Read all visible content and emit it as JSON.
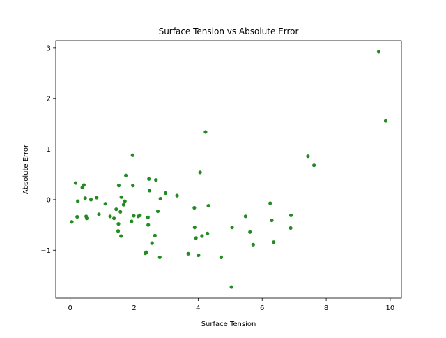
{
  "chart_data": {
    "type": "scatter",
    "title": "Surface Tension vs Absolute Error",
    "xlabel": "Surface Tension",
    "ylabel": "Absolute Error",
    "xlim": [
      -0.45,
      10.35
    ],
    "ylim": [
      -1.95,
      3.15
    ],
    "xticks": [
      0,
      2,
      4,
      6,
      8,
      10
    ],
    "yticks": [
      -1,
      0,
      1,
      2,
      3
    ],
    "grid": false,
    "legend": "none",
    "marker_color": "#228b22",
    "points": [
      {
        "x": 0.05,
        "y": -0.44
      },
      {
        "x": 0.17,
        "y": 0.33
      },
      {
        "x": 0.22,
        "y": -0.34
      },
      {
        "x": 0.24,
        "y": -0.03
      },
      {
        "x": 0.38,
        "y": 0.24
      },
      {
        "x": 0.43,
        "y": 0.29
      },
      {
        "x": 0.47,
        "y": 0.03
      },
      {
        "x": 0.5,
        "y": -0.33
      },
      {
        "x": 0.52,
        "y": -0.37
      },
      {
        "x": 0.65,
        "y": 0.0
      },
      {
        "x": 0.83,
        "y": 0.04
      },
      {
        "x": 0.9,
        "y": -0.29
      },
      {
        "x": 1.1,
        "y": -0.08
      },
      {
        "x": 1.25,
        "y": -0.33
      },
      {
        "x": 1.37,
        "y": -0.37
      },
      {
        "x": 1.44,
        "y": -0.19
      },
      {
        "x": 1.5,
        "y": -0.62
      },
      {
        "x": 1.51,
        "y": -0.48
      },
      {
        "x": 1.52,
        "y": 0.28
      },
      {
        "x": 1.57,
        "y": -0.24
      },
      {
        "x": 1.59,
        "y": -0.72
      },
      {
        "x": 1.6,
        "y": 0.05
      },
      {
        "x": 1.67,
        "y": -0.1
      },
      {
        "x": 1.71,
        "y": -0.03
      },
      {
        "x": 1.74,
        "y": 0.48
      },
      {
        "x": 1.92,
        "y": -0.43
      },
      {
        "x": 1.95,
        "y": 0.88
      },
      {
        "x": 1.96,
        "y": 0.28
      },
      {
        "x": 1.99,
        "y": -0.32
      },
      {
        "x": 2.13,
        "y": -0.33
      },
      {
        "x": 2.18,
        "y": -0.31
      },
      {
        "x": 2.35,
        "y": -1.06
      },
      {
        "x": 2.38,
        "y": -1.04
      },
      {
        "x": 2.43,
        "y": -0.35
      },
      {
        "x": 2.44,
        "y": -0.5
      },
      {
        "x": 2.46,
        "y": 0.41
      },
      {
        "x": 2.48,
        "y": 0.18
      },
      {
        "x": 2.56,
        "y": -0.86
      },
      {
        "x": 2.65,
        "y": -0.71
      },
      {
        "x": 2.68,
        "y": 0.39
      },
      {
        "x": 2.74,
        "y": -0.23
      },
      {
        "x": 2.8,
        "y": -1.14
      },
      {
        "x": 2.82,
        "y": 0.02
      },
      {
        "x": 2.98,
        "y": 0.13
      },
      {
        "x": 3.34,
        "y": 0.08
      },
      {
        "x": 3.69,
        "y": -1.07
      },
      {
        "x": 3.88,
        "y": -0.16
      },
      {
        "x": 3.89,
        "y": -0.55
      },
      {
        "x": 3.93,
        "y": -0.76
      },
      {
        "x": 4.01,
        "y": -1.1
      },
      {
        "x": 4.06,
        "y": 0.54
      },
      {
        "x": 4.12,
        "y": -0.72
      },
      {
        "x": 4.23,
        "y": 1.34
      },
      {
        "x": 4.29,
        "y": -0.67
      },
      {
        "x": 4.32,
        "y": -0.12
      },
      {
        "x": 4.72,
        "y": -1.14
      },
      {
        "x": 5.04,
        "y": -1.73
      },
      {
        "x": 5.06,
        "y": -0.55
      },
      {
        "x": 5.48,
        "y": -0.33
      },
      {
        "x": 5.62,
        "y": -0.64
      },
      {
        "x": 5.72,
        "y": -0.89
      },
      {
        "x": 6.25,
        "y": -0.07
      },
      {
        "x": 6.3,
        "y": -0.41
      },
      {
        "x": 6.36,
        "y": -0.84
      },
      {
        "x": 6.89,
        "y": -0.56
      },
      {
        "x": 6.9,
        "y": -0.31
      },
      {
        "x": 7.43,
        "y": 0.86
      },
      {
        "x": 7.62,
        "y": 0.68
      },
      {
        "x": 9.64,
        "y": 2.93
      },
      {
        "x": 9.86,
        "y": 1.56
      }
    ]
  }
}
